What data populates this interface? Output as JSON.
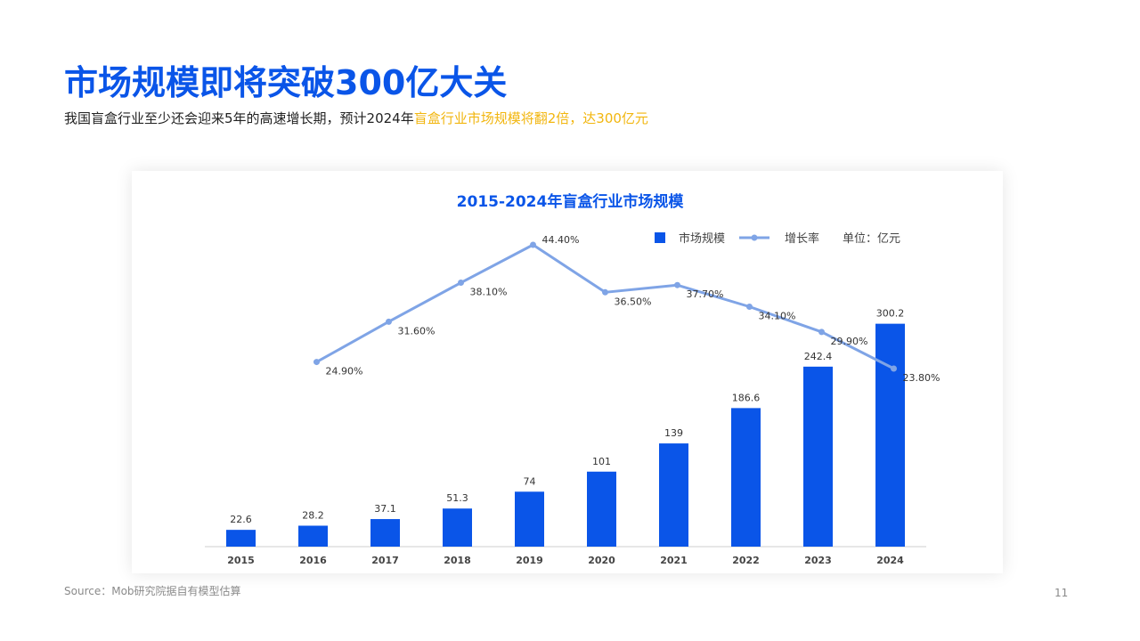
{
  "page": {
    "title": "市场规模即将突破300亿大关",
    "subtitle_plain": "我国盲盒行业至少还会迎来5年的高速增长期，预计2024年",
    "subtitle_highlight": "盲盒行业市场规模将翻2倍，达300亿元",
    "source": "Source：Mob研究院据自有模型估算",
    "page_number": "11"
  },
  "colors": {
    "title": "#0a55e8",
    "bar": "#0a55e8",
    "line": "#7fa4e6",
    "highlight": "#f2b60f"
  },
  "chart_data": {
    "type": "bar",
    "title": "2015-2024年盲盒行业市场规模",
    "unit_note": "单位：亿元",
    "categories": [
      "2015",
      "2016",
      "2017",
      "2018",
      "2019",
      "2020",
      "2021",
      "2022",
      "2023",
      "2024"
    ],
    "series": [
      {
        "name": "市场规模",
        "type": "bar",
        "values": [
          22.6,
          28.2,
          37.1,
          51.3,
          74,
          101,
          139,
          186.6,
          242.4,
          300.2
        ],
        "labels": [
          "22.6",
          "28.2",
          "37.1",
          "51.3",
          "74",
          "101",
          "139",
          "186.6",
          "242.4",
          "300.2"
        ]
      },
      {
        "name": "增长率",
        "type": "line",
        "values": [
          null,
          24.9,
          31.6,
          38.1,
          44.4,
          36.5,
          37.7,
          34.1,
          29.9,
          23.8
        ],
        "labels": [
          null,
          "24.90%",
          "31.60%",
          "38.10%",
          "44.40%",
          "36.50%",
          "37.70%",
          "34.10%",
          "29.90%",
          "23.80%"
        ]
      }
    ],
    "legend_position": "top-right",
    "grid": false
  }
}
